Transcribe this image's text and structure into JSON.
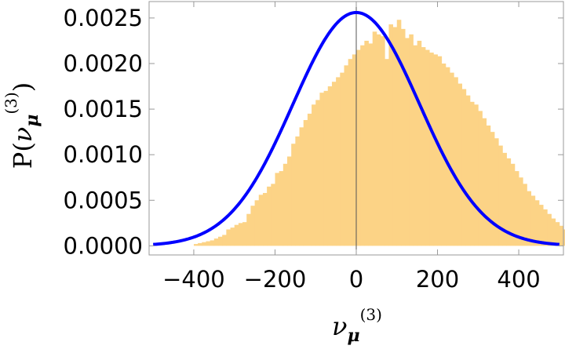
{
  "chart_data": {
    "type": "bar",
    "title": "",
    "xlabel": {
      "base": "ν",
      "sub": "μ",
      "sup": "(3)"
    },
    "ylabel": {
      "prefix": "P(",
      "base": "ν",
      "sub": "μ",
      "sup": "(3)",
      "suffix": ")"
    },
    "xlim": [
      -510,
      510
    ],
    "ylim": [
      -0.0001,
      0.00268
    ],
    "x_ticks": [
      -400,
      -200,
      0,
      200,
      400
    ],
    "x_tick_labels": [
      "−400",
      "−200",
      "0",
      "200",
      "400"
    ],
    "y_ticks": [
      0,
      0.0005,
      0.001,
      0.0015,
      0.002,
      0.0025
    ],
    "y_tick_labels": [
      "0.0000",
      "0.0005",
      "0.0010",
      "0.0015",
      "0.0020",
      "0.0025"
    ],
    "grid": false,
    "histogram": {
      "bin_width": 10,
      "bin_start": -400,
      "color": "#fcd386",
      "values": [
        2e-05,
        3e-05,
        4e-05,
        5e-05,
        6e-05,
        8e-05,
        0.0001,
        0.00012,
        0.00018,
        0.0002,
        0.00023,
        0.00025,
        0.00026,
        0.00035,
        0.00044,
        0.0005,
        0.00056,
        0.00058,
        0.00065,
        0.00068,
        0.0008,
        0.00082,
        0.0009,
        0.00098,
        0.00112,
        0.0012,
        0.0013,
        0.00138,
        0.00145,
        0.00155,
        0.0016,
        0.00168,
        0.0017,
        0.00175,
        0.0018,
        0.00185,
        0.0019,
        0.00198,
        0.00205,
        0.0021,
        0.00215,
        0.0022,
        0.00225,
        0.00222,
        0.00235,
        0.00232,
        0.0023,
        0.00205,
        0.00243,
        0.0024,
        0.00248,
        0.00238,
        0.00228,
        0.00232,
        0.0022,
        0.00225,
        0.00218,
        0.00215,
        0.00212,
        0.0021,
        0.00208,
        0.002,
        0.00196,
        0.0019,
        0.00185,
        0.00178,
        0.00172,
        0.00165,
        0.00158,
        0.00155,
        0.00148,
        0.0014,
        0.00132,
        0.00125,
        0.00118,
        0.0011,
        0.00102,
        0.00096,
        0.0009,
        0.00082,
        0.00075,
        0.00068,
        0.0006,
        0.00055,
        0.0005,
        0.00045,
        0.0004,
        0.00035,
        0.0003,
        0.00026,
        0.00022,
        0.00018,
        0.00015,
        0.00012,
        0.0001,
        8e-05,
        6e-05,
        4e-05,
        3e-05,
        2e-05
      ]
    },
    "curve": {
      "type": "gaussian",
      "mean": 0,
      "sigma": 156,
      "peak": 0.00256,
      "x_range": [
        -500,
        500
      ],
      "color": "#0000ff"
    },
    "zero_line": {
      "x": 0,
      "color": "#555555"
    }
  }
}
